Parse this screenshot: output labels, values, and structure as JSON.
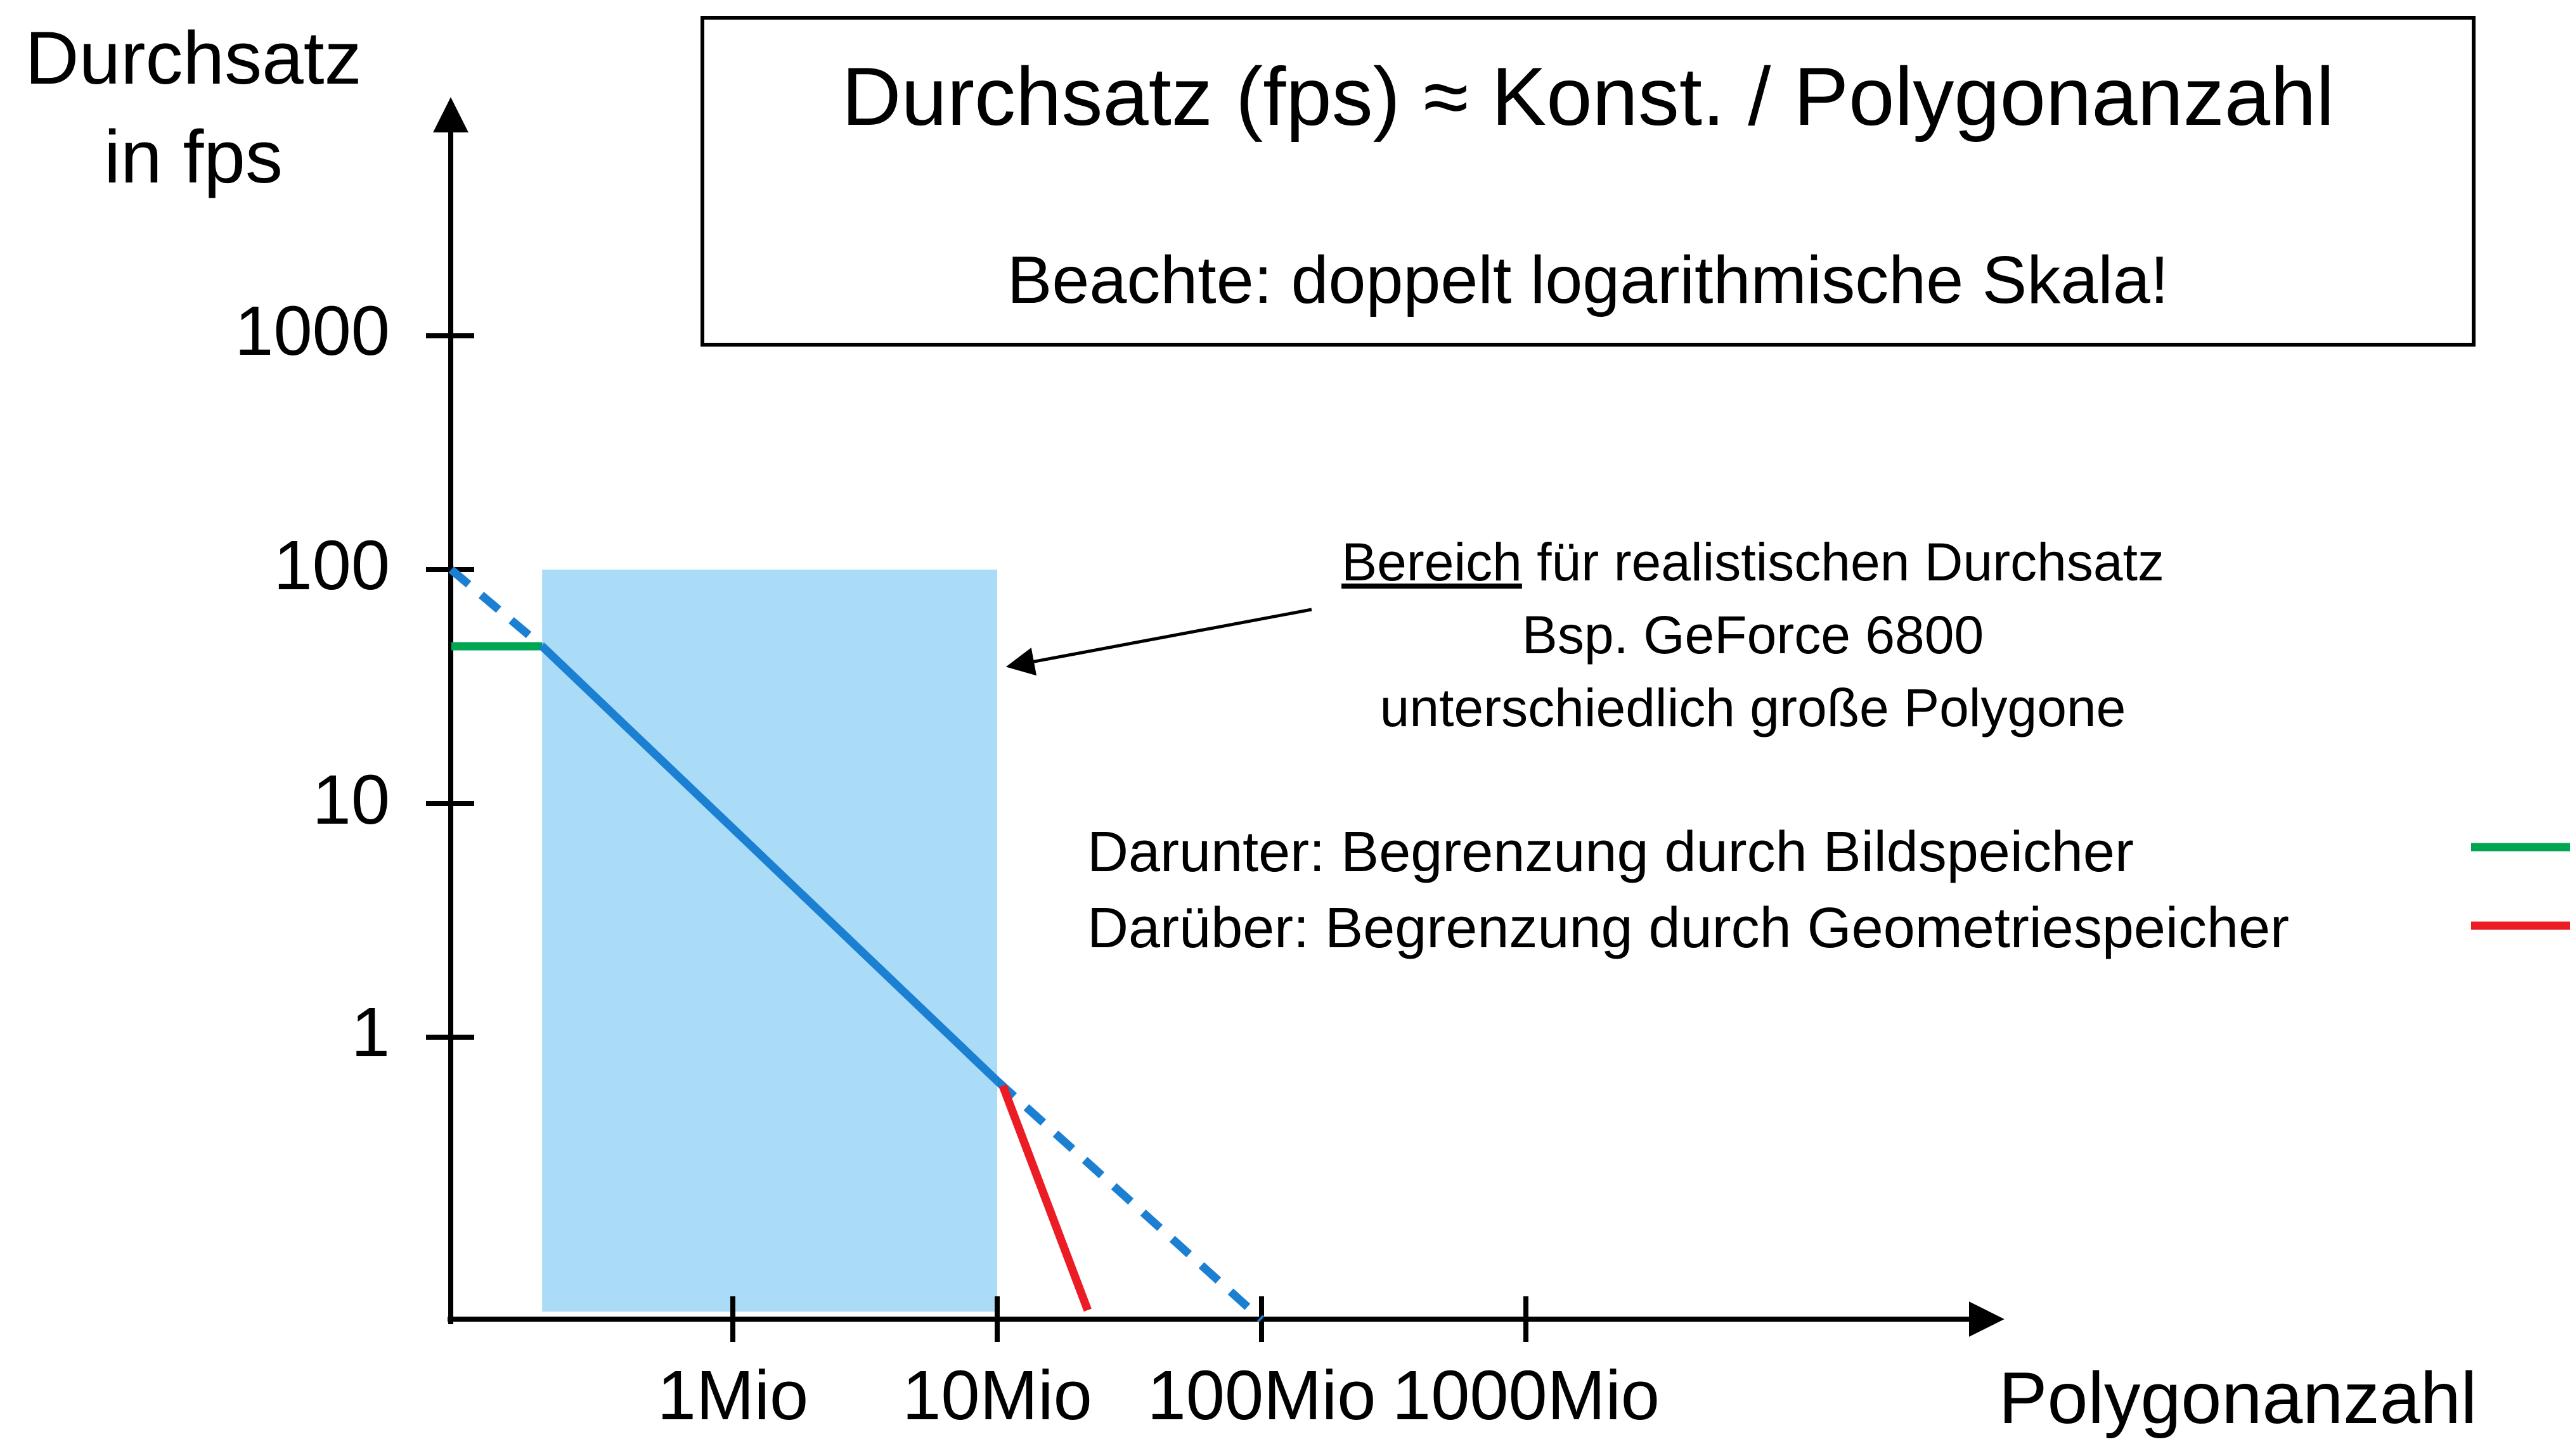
{
  "title_box": {
    "title": "Durchsatz (fps) ≈ Konst. / Polygonanzahl",
    "subtitle": "Beachte: doppelt logarithmische Skala!"
  },
  "annotation": {
    "line1_underlined": "Bereich",
    "line1_rest": " für realistischen Durchsatz",
    "line2": "Bsp. GeForce 6800",
    "line3": "unterschiedlich große Polygone"
  },
  "legend": {
    "green_label": "Darunter: Begrenzung durch Bildspeicher",
    "red_label": "Darüber: Begrenzung durch Geometriespeicher"
  },
  "colors": {
    "blue": "#1b7fd2",
    "light_blue": "#aadcf8",
    "green": "#00a651",
    "red": "#ec1c24",
    "black": "#000000"
  },
  "chart_data": {
    "type": "line",
    "relation": "Durchsatz (fps) ≈ Konst. / Polygonanzahl",
    "note": "doppelt logarithmische Skala",
    "x_axis": {
      "label": "Polygonanzahl",
      "scale": "log",
      "unit": "Mio",
      "ticks": [
        1,
        10,
        100,
        1000
      ],
      "tick_labels": [
        "1Mio",
        "10Mio",
        "100Mio",
        "1000Mio"
      ]
    },
    "y_axis": {
      "label_lines": [
        "Durchsatz",
        "in fps"
      ],
      "scale": "log",
      "ticks": [
        1000,
        100,
        10,
        1
      ]
    },
    "region": {
      "name": "realistic-throughput-region",
      "meaning": "Bereich für realistischen Durchsatz, Bsp. GeForce 6800, unterschiedlich große Polygone",
      "x1": 0.19,
      "x2": 10,
      "y1": 0.067,
      "y2": 100
    },
    "series": [
      {
        "name": "fillrate-limit-line",
        "color": "green",
        "style": "solid",
        "points": [
          [
            0.086,
            47
          ],
          [
            0.19,
            47
          ]
        ]
      },
      {
        "name": "ideal-line-upper-dashed",
        "color": "blue",
        "style": "dashed",
        "points": [
          [
            0.086,
            100
          ],
          [
            0.19,
            47
          ]
        ]
      },
      {
        "name": "realistic-throughput-line",
        "color": "blue",
        "style": "solid",
        "points": [
          [
            0.19,
            47
          ],
          [
            10,
            0.65
          ]
        ]
      },
      {
        "name": "ideal-line-lower-dashed",
        "color": "blue",
        "style": "dashed",
        "points": [
          [
            10,
            0.65
          ],
          [
            100,
            0.062
          ]
        ]
      },
      {
        "name": "geometry-memory-limit-line",
        "color": "red",
        "style": "solid",
        "points": [
          [
            10.5,
            0.62
          ],
          [
            22,
            0.068
          ]
        ]
      }
    ]
  }
}
